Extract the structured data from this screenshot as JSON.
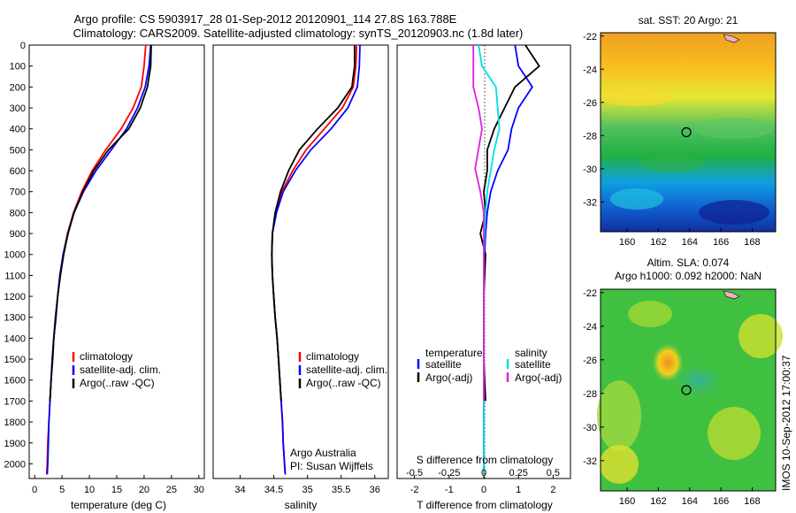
{
  "header": {
    "line1": "Argo profile: CS 5903917_28 01-Sep-2012 20120901_114 27.8S 163.788E",
    "line2": "Climatology: CARS2009. Satellite-adjusted climatology: synTS_20120903.nc (1.8d later)"
  },
  "colors": {
    "climatology": "#ff0000",
    "satellite": "#0000ff",
    "argo": "#000000",
    "sal_satellite": "#00e0e0",
    "sal_argo": "#e020e0"
  },
  "chart_data": [
    {
      "type": "line",
      "xlabel": "temperature (deg C)",
      "ylabel": "",
      "xlim": [
        -1,
        31
      ],
      "ylim": [
        2070,
        0
      ],
      "x_ticks": [
        "0",
        "5",
        "10",
        "15",
        "20",
        "25",
        "30"
      ],
      "y_ticks": [
        "0",
        "100",
        "200",
        "300",
        "400",
        "500",
        "600",
        "700",
        "800",
        "900",
        "1000",
        "1100",
        "1200",
        "1300",
        "1400",
        "1500",
        "1600",
        "1700",
        "1800",
        "1900",
        "2000"
      ],
      "legend": [
        "climatology",
        "satellite-adj. clim.",
        "Argo(..raw -QC)"
      ],
      "legend_position": "lower-center",
      "series": [
        {
          "name": "climatology",
          "color": "#ff0000",
          "x": [
            20.3,
            20.0,
            19.5,
            18.0,
            15.8,
            13.0,
            10.5,
            8.6,
            7.1,
            6.0,
            5.2,
            4.6,
            4.2,
            3.8,
            3.5,
            3.2,
            3.0,
            2.8,
            2.6,
            2.4,
            2.3,
            2.2
          ],
          "y": [
            0,
            100,
            200,
            300,
            400,
            500,
            600,
            700,
            800,
            900,
            1000,
            1100,
            1200,
            1300,
            1400,
            1500,
            1600,
            1700,
            1800,
            1900,
            2000,
            2050
          ]
        },
        {
          "name": "satellite-adj. clim.",
          "color": "#0000ff",
          "x": [
            21.2,
            20.9,
            20.2,
            18.8,
            16.8,
            14.0,
            11.2,
            8.9,
            7.2,
            6.1,
            5.2,
            4.6,
            4.2,
            3.8,
            3.5,
            3.2,
            3.0,
            2.8,
            2.6,
            2.5,
            2.4,
            2.3
          ],
          "y": [
            0,
            100,
            200,
            300,
            400,
            500,
            600,
            700,
            800,
            900,
            1000,
            1100,
            1200,
            1300,
            1400,
            1500,
            1600,
            1700,
            1800,
            1900,
            2000,
            2050
          ]
        },
        {
          "name": "Argo(..raw -QC)",
          "color": "#000000",
          "x": [
            21.3,
            21.2,
            20.6,
            19.3,
            17.2,
            13.5,
            10.8,
            8.8,
            7.2,
            6.1,
            5.3,
            4.7,
            4.2,
            3.9,
            3.5,
            3.3,
            3.0,
            2.8
          ],
          "y": [
            0,
            100,
            200,
            300,
            400,
            500,
            600,
            700,
            800,
            900,
            1000,
            1100,
            1200,
            1300,
            1400,
            1500,
            1600,
            1700
          ]
        }
      ]
    },
    {
      "type": "line",
      "xlabel": "salinity",
      "xlim": [
        33.6,
        36.2
      ],
      "ylim": [
        2070,
        0
      ],
      "x_ticks": [
        "34",
        "34.5",
        "35",
        "35.5",
        "36"
      ],
      "legend": [
        "climatology",
        "satellite-adj. clim.",
        "Argo(..raw -QC)"
      ],
      "legend_position": "lower-center",
      "annotation": [
        "Argo Australia",
        "PI: Susan Wijffels"
      ],
      "series": [
        {
          "name": "climatology",
          "color": "#ff0000",
          "x": [
            35.73,
            35.72,
            35.68,
            35.52,
            35.25,
            34.98,
            34.78,
            34.62,
            34.53,
            34.48,
            34.47,
            34.48,
            34.5,
            34.52,
            34.55,
            34.57,
            34.59,
            34.61,
            34.63,
            34.64,
            34.66,
            34.67
          ],
          "y": [
            0,
            100,
            200,
            300,
            400,
            500,
            600,
            700,
            800,
            900,
            1000,
            1100,
            1200,
            1300,
            1400,
            1500,
            1600,
            1700,
            1800,
            1900,
            2000,
            2050
          ]
        },
        {
          "name": "satellite-adj. clim.",
          "color": "#0000ff",
          "x": [
            35.78,
            35.77,
            35.74,
            35.6,
            35.35,
            35.05,
            34.82,
            34.64,
            34.54,
            34.48,
            34.47,
            34.48,
            34.5,
            34.52,
            34.55,
            34.57,
            34.59,
            34.61,
            34.63,
            34.64,
            34.66,
            34.67
          ],
          "y": [
            0,
            100,
            200,
            300,
            400,
            500,
            600,
            700,
            800,
            900,
            1000,
            1100,
            1200,
            1300,
            1400,
            1500,
            1600,
            1700,
            1800,
            1900,
            2000,
            2050
          ]
        },
        {
          "name": "Argo(..raw -QC)",
          "color": "#000000",
          "x": [
            35.7,
            35.7,
            35.66,
            35.45,
            35.15,
            34.88,
            34.72,
            34.6,
            34.52,
            34.48,
            34.47,
            34.48,
            34.5,
            34.52,
            34.55,
            34.57,
            34.59,
            34.61
          ],
          "y": [
            0,
            100,
            200,
            300,
            400,
            500,
            600,
            700,
            800,
            900,
            1000,
            1100,
            1200,
            1300,
            1400,
            1500,
            1600,
            1700
          ]
        }
      ]
    },
    {
      "type": "line",
      "xlabel": "T difference from climatology",
      "xlabel_top": "S difference from climatology",
      "xlim": [
        -2.5,
        2.5
      ],
      "ylim": [
        2070,
        0
      ],
      "x_ticks": [
        "-2",
        "-1",
        "0",
        "1",
        "2"
      ],
      "x_ticks_salinity": [
        "-0.5",
        "-0.25",
        "0",
        "0.25",
        "0.5"
      ],
      "legend_temperature": [
        "temperature",
        "satellite",
        "Argo(-adj)"
      ],
      "legend_salinity": [
        "salinity",
        "satellite",
        "Argo(-adj)"
      ],
      "legend_position": "lower-center",
      "series": [
        {
          "name": "satellite",
          "color": "#0000ff",
          "x": [
            0.9,
            1.0,
            1.4,
            1.0,
            0.8,
            0.7,
            0.4,
            0.2,
            0.1,
            0.05,
            0.02,
            0.0,
            0.0,
            0.0,
            0.0
          ],
          "y": [
            0,
            100,
            200,
            300,
            400,
            500,
            600,
            700,
            800,
            900,
            1000,
            1200,
            1500,
            1800,
            2050
          ]
        },
        {
          "name": "Argo(-adj)",
          "color": "#000000",
          "x": [
            1.2,
            1.6,
            0.9,
            0.6,
            0.3,
            0.1,
            0.1,
            0.0,
            0.05,
            -0.1,
            0.05,
            0.0,
            0.0,
            0.05
          ],
          "y": [
            0,
            100,
            200,
            300,
            400,
            500,
            600,
            700,
            800,
            900,
            1000,
            1200,
            1500,
            1700
          ]
        },
        {
          "name": "salinity satellite",
          "color": "#00e0e0",
          "x": [
            -0.15,
            -0.05,
            0.35,
            0.4,
            0.45,
            0.3,
            0.2,
            0.1,
            0.05,
            0.02,
            0.0,
            0.0,
            0.0,
            0.0
          ],
          "y": [
            0,
            100,
            200,
            300,
            400,
            500,
            600,
            700,
            800,
            900,
            1000,
            1300,
            1600,
            2050
          ]
        },
        {
          "name": "salinity Argo(-adj)",
          "color": "#e020e0",
          "x": [
            -0.3,
            -0.3,
            -0.3,
            -0.15,
            -0.05,
            -0.25,
            -0.1,
            0.0,
            0.0,
            0.0,
            0.0,
            0.0
          ],
          "y": [
            0,
            100,
            200,
            300,
            400,
            590,
            700,
            800,
            900,
            1200,
            1500,
            1700
          ]
        }
      ]
    },
    {
      "type": "heatmap",
      "title": "sat. SST: 20 Argo: 21",
      "x_ticks": [
        "160",
        "162",
        "164",
        "166",
        "168"
      ],
      "y_ticks": [
        "-22",
        "-24",
        "-26",
        "-28",
        "-30",
        "-32"
      ],
      "xlim": [
        158.3,
        169.5
      ],
      "ylim": [
        -33.8,
        -21.8
      ],
      "marker": {
        "lon": 163.788,
        "lat": -27.8
      }
    },
    {
      "type": "heatmap",
      "title_line1": "Altim. SLA: 0.074",
      "title_line2": "Argo h1000: 0.092 h2000: NaN",
      "x_ticks": [
        "160",
        "162",
        "164",
        "166",
        "168"
      ],
      "y_ticks": [
        "-22",
        "-24",
        "-26",
        "-28",
        "-30",
        "-32"
      ],
      "xlim": [
        158.3,
        169.5
      ],
      "ylim": [
        -33.8,
        -21.8
      ],
      "marker": {
        "lon": 163.788,
        "lat": -27.8
      }
    }
  ],
  "footer": {
    "stamp": "IMOS 10-Sep-2012 17:00:37"
  }
}
